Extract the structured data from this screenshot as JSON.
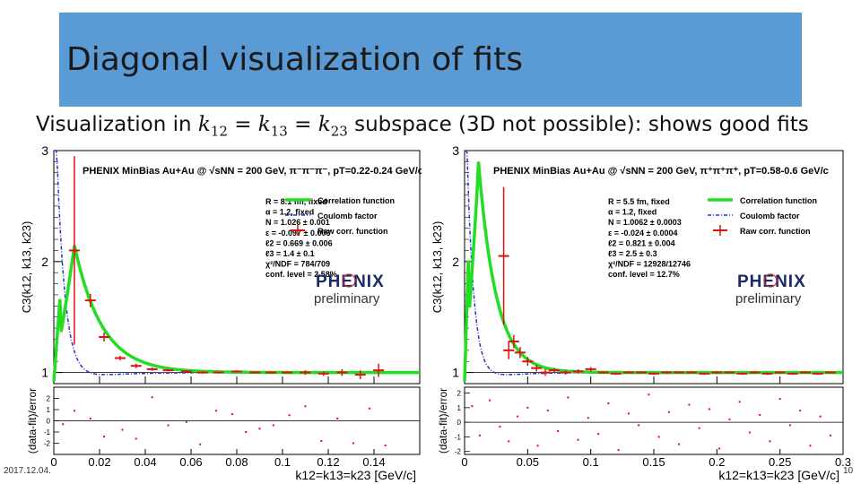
{
  "slide": {
    "title": "Diagonal visualization of fits",
    "subtitle_prefix": "Visualization in ",
    "subtitle_suffix": " subspace (3D not possible): shows good fits",
    "footer_date": "2017.12.04.",
    "page_number": "10"
  },
  "colors": {
    "title_bar": "#5b9bd5",
    "fit": "#22dd22",
    "coulomb": "#2233cc",
    "data": "#dd1111"
  },
  "chart_data": [
    {
      "type": "line",
      "header": "PHENIX MinBias Au+Au @ √sNN = 200 GeV, π⁻π⁻π⁻, pT=0.22-0.24 GeV/c",
      "ylabel": "C3(k12, k13, k23)",
      "resid_ylabel": "(data-fit)/error",
      "xlabel": "k12=k13=k23 [GeV/c]",
      "xlim": [
        0,
        0.16
      ],
      "ylim": [
        0.9,
        3.0
      ],
      "resid_ylim": [
        -3.0,
        3.0
      ],
      "x_ticks": [
        "0",
        "0.02",
        "0.04",
        "0.06",
        "0.08",
        "0.1",
        "0.12",
        "0.14"
      ],
      "y_ticks": [
        "1",
        "2",
        "3"
      ],
      "resid_y_ticks": [
        "2",
        "1",
        "0",
        "-1",
        "-2"
      ],
      "params": [
        "R = 8.1 fm, fixed",
        "α = 1.2, fixed",
        "N = 1.026 ± 0.001",
        "ε = -0.097 ± 0.006",
        "ℓ2 = 0.669 ± 0.006",
        "ℓ3 = 1.4 ± 0.1",
        "χ²/NDF = 784/709",
        "conf. level = 2.58%"
      ],
      "legend": [
        "Correlation function",
        "Coulomb factor",
        "Raw corr. function"
      ],
      "logo": [
        "PHENIX",
        "preliminary"
      ],
      "fit_peak_x": 0.009,
      "fit_peak_y": 2.15,
      "fit_decay": 0.012,
      "coulomb_scale": 0.004,
      "data_points": [
        {
          "x": 0.009,
          "y": 2.1,
          "ey": 0.85
        },
        {
          "x": 0.016,
          "y": 1.65,
          "ey": 0.06
        },
        {
          "x": 0.022,
          "y": 1.32,
          "ey": 0.04
        },
        {
          "x": 0.029,
          "y": 1.13,
          "ey": 0.02
        },
        {
          "x": 0.036,
          "y": 1.06,
          "ey": 0.02
        },
        {
          "x": 0.043,
          "y": 1.03,
          "ey": 0.015
        },
        {
          "x": 0.05,
          "y": 1.02,
          "ey": 0.01
        },
        {
          "x": 0.058,
          "y": 1.01,
          "ey": 0.01
        },
        {
          "x": 0.065,
          "y": 1.0,
          "ey": 0.01
        },
        {
          "x": 0.072,
          "y": 1.0,
          "ey": 0.01
        },
        {
          "x": 0.08,
          "y": 1.01,
          "ey": 0.01
        },
        {
          "x": 0.088,
          "y": 1.0,
          "ey": 0.01
        },
        {
          "x": 0.095,
          "y": 1.0,
          "ey": 0.01
        },
        {
          "x": 0.102,
          "y": 1.0,
          "ey": 0.01
        },
        {
          "x": 0.11,
          "y": 1.0,
          "ey": 0.02
        },
        {
          "x": 0.118,
          "y": 0.99,
          "ey": 0.02
        },
        {
          "x": 0.126,
          "y": 1.0,
          "ey": 0.03
        },
        {
          "x": 0.134,
          "y": 0.98,
          "ey": 0.04
        },
        {
          "x": 0.142,
          "y": 1.02,
          "ey": 0.06
        }
      ],
      "residuals": [
        {
          "x": 0.004,
          "y": -0.3
        },
        {
          "x": 0.009,
          "y": 0.9
        },
        {
          "x": 0.016,
          "y": 0.2
        },
        {
          "x": 0.022,
          "y": -1.4
        },
        {
          "x": 0.03,
          "y": -0.8
        },
        {
          "x": 0.036,
          "y": -1.6
        },
        {
          "x": 0.043,
          "y": 2.1
        },
        {
          "x": 0.05,
          "y": -0.4
        },
        {
          "x": 0.058,
          "y": -0.1
        },
        {
          "x": 0.064,
          "y": -2.1
        },
        {
          "x": 0.071,
          "y": 0.9
        },
        {
          "x": 0.078,
          "y": 0.6
        },
        {
          "x": 0.084,
          "y": -1.0
        },
        {
          "x": 0.09,
          "y": -0.7
        },
        {
          "x": 0.096,
          "y": -0.4
        },
        {
          "x": 0.103,
          "y": 0.5
        },
        {
          "x": 0.11,
          "y": 1.3
        },
        {
          "x": 0.117,
          "y": -1.8
        },
        {
          "x": 0.124,
          "y": 0.2
        },
        {
          "x": 0.131,
          "y": -2.0
        },
        {
          "x": 0.138,
          "y": 1.1
        },
        {
          "x": 0.145,
          "y": -2.2
        }
      ]
    },
    {
      "type": "line",
      "header": "PHENIX MinBias Au+Au @ √sNN = 200 GeV, π⁺π⁺π⁺, pT=0.58-0.6 GeV/c",
      "ylabel": "C3(k12, k13, k23)",
      "resid_ylabel": "(data-fit)/error",
      "xlabel": "k12=k13=k23 [GeV/c]",
      "xlim": [
        0,
        0.3
      ],
      "ylim": [
        0.9,
        3.0
      ],
      "resid_ylim": [
        -2.2,
        2.4
      ],
      "x_ticks": [
        "0",
        "0.05",
        "0.1",
        "0.15",
        "0.2",
        "0.25",
        "0.3"
      ],
      "y_ticks": [
        "1",
        "2",
        "3"
      ],
      "resid_y_ticks": [
        "2",
        "1",
        "0",
        "-1",
        "-2"
      ],
      "params": [
        "R = 5.5 fm, fixed",
        "α = 1.2, fixed",
        "N = 1.0062 ± 0.0003",
        "ε = -0.024 ± 0.0004",
        "ℓ2 = 0.821 ± 0.004",
        "ℓ3 = 2.5 ± 0.3",
        "χ²/NDF = 12928/12746",
        "conf. level = 12.7%"
      ],
      "legend": [
        "Correlation function",
        "Coulomb factor",
        "Raw corr. function"
      ],
      "logo": [
        "PHENIX",
        "preliminary"
      ],
      "fit_peak_x": 0.011,
      "fit_peak_y": 2.9,
      "fit_decay": 0.014,
      "coulomb_scale": 0.006,
      "data_points": [
        {
          "x": 0.031,
          "y": 2.05,
          "ey": 0.62
        },
        {
          "x": 0.035,
          "y": 1.2,
          "ey": 0.08
        },
        {
          "x": 0.039,
          "y": 1.28,
          "ey": 0.06
        },
        {
          "x": 0.044,
          "y": 1.18,
          "ey": 0.05
        },
        {
          "x": 0.05,
          "y": 1.1,
          "ey": 0.04
        },
        {
          "x": 0.057,
          "y": 1.04,
          "ey": 0.03
        },
        {
          "x": 0.064,
          "y": 1.0,
          "ey": 0.03
        },
        {
          "x": 0.071,
          "y": 1.02,
          "ey": 0.02
        },
        {
          "x": 0.08,
          "y": 1.0,
          "ey": 0.02
        },
        {
          "x": 0.09,
          "y": 1.01,
          "ey": 0.02
        },
        {
          "x": 0.1,
          "y": 1.03,
          "ey": 0.02
        },
        {
          "x": 0.11,
          "y": 1.0,
          "ey": 0.01
        },
        {
          "x": 0.12,
          "y": 0.99,
          "ey": 0.01
        },
        {
          "x": 0.13,
          "y": 1.0,
          "ey": 0.01
        },
        {
          "x": 0.14,
          "y": 1.0,
          "ey": 0.01
        },
        {
          "x": 0.15,
          "y": 0.99,
          "ey": 0.01
        },
        {
          "x": 0.16,
          "y": 1.0,
          "ey": 0.01
        },
        {
          "x": 0.17,
          "y": 1.0,
          "ey": 0.01
        },
        {
          "x": 0.18,
          "y": 1.0,
          "ey": 0.01
        },
        {
          "x": 0.19,
          "y": 0.99,
          "ey": 0.01
        },
        {
          "x": 0.2,
          "y": 1.0,
          "ey": 0.01
        },
        {
          "x": 0.21,
          "y": 1.0,
          "ey": 0.01
        },
        {
          "x": 0.22,
          "y": 0.99,
          "ey": 0.01
        },
        {
          "x": 0.23,
          "y": 1.0,
          "ey": 0.01
        },
        {
          "x": 0.24,
          "y": 0.99,
          "ey": 0.01
        },
        {
          "x": 0.25,
          "y": 1.0,
          "ey": 0.01
        },
        {
          "x": 0.26,
          "y": 0.99,
          "ey": 0.01
        },
        {
          "x": 0.27,
          "y": 1.0,
          "ey": 0.01
        },
        {
          "x": 0.28,
          "y": 0.99,
          "ey": 0.01
        },
        {
          "x": 0.29,
          "y": 1.0,
          "ey": 0.01
        }
      ],
      "residuals": [
        {
          "x": 0.006,
          "y": 1.1
        },
        {
          "x": 0.012,
          "y": -0.9
        },
        {
          "x": 0.02,
          "y": 1.5
        },
        {
          "x": 0.028,
          "y": -0.3
        },
        {
          "x": 0.035,
          "y": -1.3
        },
        {
          "x": 0.042,
          "y": 0.4
        },
        {
          "x": 0.05,
          "y": 1.0
        },
        {
          "x": 0.058,
          "y": -1.6
        },
        {
          "x": 0.066,
          "y": 0.8
        },
        {
          "x": 0.074,
          "y": -0.6
        },
        {
          "x": 0.082,
          "y": 1.7
        },
        {
          "x": 0.09,
          "y": -1.2
        },
        {
          "x": 0.098,
          "y": 0.3
        },
        {
          "x": 0.106,
          "y": -0.8
        },
        {
          "x": 0.114,
          "y": 1.3
        },
        {
          "x": 0.122,
          "y": -1.9
        },
        {
          "x": 0.13,
          "y": 0.6
        },
        {
          "x": 0.138,
          "y": -0.2
        },
        {
          "x": 0.146,
          "y": 1.9
        },
        {
          "x": 0.154,
          "y": -1.0
        },
        {
          "x": 0.162,
          "y": 0.7
        },
        {
          "x": 0.17,
          "y": -1.5
        },
        {
          "x": 0.178,
          "y": 1.2
        },
        {
          "x": 0.186,
          "y": -0.4
        },
        {
          "x": 0.194,
          "y": 0.9
        },
        {
          "x": 0.202,
          "y": -1.8
        },
        {
          "x": 0.21,
          "y": 0.2
        },
        {
          "x": 0.218,
          "y": 1.4
        },
        {
          "x": 0.226,
          "y": -0.7
        },
        {
          "x": 0.234,
          "y": 0.5
        },
        {
          "x": 0.242,
          "y": -1.3
        },
        {
          "x": 0.25,
          "y": 1.6
        },
        {
          "x": 0.258,
          "y": -0.2
        },
        {
          "x": 0.266,
          "y": 0.8
        },
        {
          "x": 0.274,
          "y": -1.6
        },
        {
          "x": 0.282,
          "y": 0.4
        },
        {
          "x": 0.29,
          "y": -0.9
        }
      ]
    }
  ]
}
